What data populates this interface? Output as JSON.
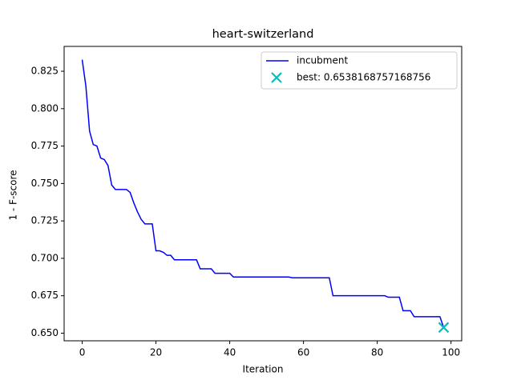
{
  "chart_data": {
    "type": "line",
    "title": "heart-switzerland",
    "x_label": "Iteration",
    "y_label": "1 - F-score",
    "series": [
      {
        "name": "incubment",
        "color": "#0000ff",
        "marker": "line",
        "x": [
          0,
          1,
          2,
          3,
          4,
          5,
          6,
          7,
          8,
          9,
          10,
          11,
          12,
          13,
          14,
          15,
          16,
          17,
          18,
          19,
          20,
          21,
          22,
          23,
          24,
          25,
          26,
          27,
          28,
          29,
          30,
          31,
          32,
          33,
          34,
          35,
          36,
          37,
          38,
          39,
          40,
          41,
          42,
          43,
          44,
          45,
          46,
          47,
          48,
          49,
          50,
          51,
          52,
          53,
          54,
          55,
          56,
          57,
          58,
          59,
          60,
          61,
          62,
          63,
          64,
          65,
          66,
          67,
          68,
          69,
          70,
          71,
          72,
          73,
          74,
          75,
          76,
          77,
          78,
          79,
          80,
          81,
          82,
          83,
          84,
          85,
          86,
          87,
          88,
          89,
          90,
          91,
          92,
          93,
          94,
          95,
          96,
          97,
          98
        ],
        "values": [
          0.8327,
          0.815,
          0.785,
          0.776,
          0.775,
          0.767,
          0.766,
          0.762,
          0.749,
          0.746,
          0.746,
          0.746,
          0.746,
          0.744,
          0.737,
          0.731,
          0.726,
          0.723,
          0.723,
          0.723,
          0.705,
          0.705,
          0.704,
          0.702,
          0.702,
          0.699,
          0.699,
          0.699,
          0.699,
          0.699,
          0.699,
          0.699,
          0.693,
          0.693,
          0.693,
          0.693,
          0.69,
          0.69,
          0.69,
          0.69,
          0.69,
          0.6875,
          0.6875,
          0.6875,
          0.6875,
          0.6875,
          0.6875,
          0.6875,
          0.6875,
          0.6875,
          0.6875,
          0.6875,
          0.6875,
          0.6875,
          0.6875,
          0.6875,
          0.6875,
          0.687,
          0.687,
          0.687,
          0.687,
          0.687,
          0.687,
          0.687,
          0.687,
          0.687,
          0.687,
          0.687,
          0.675,
          0.675,
          0.675,
          0.675,
          0.675,
          0.675,
          0.675,
          0.675,
          0.675,
          0.675,
          0.675,
          0.675,
          0.675,
          0.675,
          0.675,
          0.674,
          0.674,
          0.674,
          0.674,
          0.665,
          0.665,
          0.665,
          0.661,
          0.661,
          0.661,
          0.661,
          0.661,
          0.661,
          0.661,
          0.661,
          0.6538
        ]
      },
      {
        "name": "best: 0.6538168757168756",
        "color": "#00bfbf",
        "marker": "x",
        "x": [
          98
        ],
        "values": [
          0.6538168757168756
        ]
      }
    ],
    "xlim": [
      -4.9,
      102.9
    ],
    "xticks": [
      0,
      20,
      40,
      60,
      80,
      100
    ],
    "ylim": [
      0.6449,
      0.8416
    ],
    "yticks": [
      {
        "value": 0.65,
        "label": "0.650"
      },
      0.675,
      {
        "value": 0.7,
        "label": "0.700"
      },
      0.725,
      {
        "value": 0.75,
        "label": "0.750"
      },
      0.775,
      {
        "value": 0.8,
        "label": "0.800"
      },
      0.825
    ],
    "grid": false,
    "legend": "upper right"
  }
}
